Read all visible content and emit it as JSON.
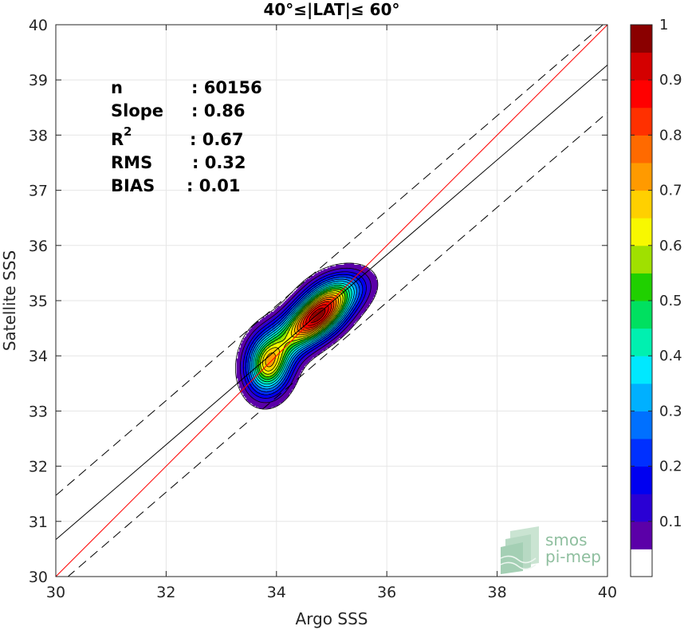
{
  "chart_data": {
    "type": "density-contour",
    "title": "40°≤|LAT|≤ 60°",
    "xlabel": "Argo SSS",
    "ylabel": "Satellite SSS",
    "xlim": [
      30,
      40
    ],
    "ylim": [
      30,
      40
    ],
    "xticks": [
      30,
      32,
      34,
      36,
      38,
      40
    ],
    "yticks": [
      30,
      31,
      32,
      33,
      34,
      35,
      36,
      37,
      38,
      39,
      40
    ],
    "grid": true,
    "stats": {
      "n_label": "n",
      "n_value": ": 60156",
      "slope_label": "Slope",
      "slope_value": ": 0.86",
      "r2_label": "R",
      "r2_sup": "2",
      "r2_value": ": 0.67",
      "rms_label": "RMS",
      "rms_value": ": 0.32",
      "bias_label": "BIAS",
      "bias_value": ": 0.01"
    },
    "lines": [
      {
        "name": "identity",
        "color": "#ff0000",
        "style": "solid",
        "slope": 1.0,
        "intercept": 0.0
      },
      {
        "name": "regression",
        "color": "#000000",
        "style": "solid",
        "slope": 0.86,
        "intercept": 4.87
      },
      {
        "name": "upper-bound",
        "color": "#000000",
        "style": "dashed",
        "slope": 0.86,
        "intercept": 5.67
      },
      {
        "name": "lower-bound",
        "color": "#000000",
        "style": "dashed",
        "slope": 0.86,
        "intercept": 4.01
      }
    ],
    "density_peaks": [
      {
        "x": 34.73,
        "y": 34.7,
        "sx": 0.35,
        "sy": 0.3,
        "rho": 0.45,
        "amp": 1.0
      },
      {
        "x": 33.85,
        "y": 33.85,
        "sx": 0.26,
        "sy": 0.36,
        "rho": 0.1,
        "amp": 0.75
      },
      {
        "x": 35.1,
        "y": 35.15,
        "sx": 0.36,
        "sy": 0.26,
        "rho": 0.3,
        "amp": 0.42
      },
      {
        "x": 34.25,
        "y": 34.3,
        "sx": 0.3,
        "sy": 0.3,
        "rho": 0.3,
        "amp": 0.3
      }
    ],
    "contour_levels": [
      0.05,
      0.1,
      0.15,
      0.2,
      0.25,
      0.3,
      0.35,
      0.4,
      0.45,
      0.5,
      0.55,
      0.6,
      0.65,
      0.7,
      0.75,
      0.8,
      0.85,
      0.9,
      0.95
    ],
    "colorbar": {
      "ticks": [
        0.1,
        0.2,
        0.3,
        0.4,
        0.5,
        0.6,
        0.7,
        0.8,
        0.9,
        1
      ],
      "tick_labels": [
        "0.1",
        "0.2",
        "0.3",
        "0.4",
        "0.5",
        "0.6",
        "0.7",
        "0.8",
        "0.9",
        "1"
      ],
      "colors": [
        "#ffffff",
        "#5b00a8",
        "#2a00d4",
        "#0000f0",
        "#0030ff",
        "#0070ff",
        "#00b0ff",
        "#00e8ff",
        "#00f0b0",
        "#00e060",
        "#20d000",
        "#a0e000",
        "#f8f800",
        "#ffd000",
        "#ff9a00",
        "#ff6a00",
        "#ff3000",
        "#ff0000",
        "#d40000",
        "#8a0000"
      ]
    }
  },
  "logo": {
    "line1": "smos",
    "line2": "pi-mep"
  }
}
